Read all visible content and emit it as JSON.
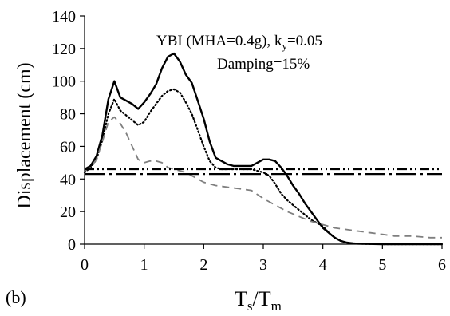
{
  "chart_data": {
    "type": "line",
    "panel_label": "(b)",
    "annotation": {
      "line1_prefix": "YBI  (MHA=0.4g), k",
      "line1_sub": "y",
      "line1_suffix": "=0.05",
      "line2": "Damping=15%"
    },
    "ylabel": "Displacement (cm)",
    "xlabel": {
      "main": "T",
      "sub1": "s",
      "mid": "/T",
      "sub2": "m"
    },
    "xlim": [
      0,
      6
    ],
    "ylim": [
      0,
      140
    ],
    "xticks": [
      "0",
      "1",
      "2",
      "3",
      "4",
      "5",
      "6"
    ],
    "yticks": [
      "0",
      "20",
      "40",
      "60",
      "80",
      "100",
      "120",
      "140"
    ],
    "grid": false,
    "legend": "none",
    "series": [
      {
        "style": "solid",
        "color": "#000000",
        "points": [
          [
            0,
            46
          ],
          [
            0.1,
            48
          ],
          [
            0.2,
            54
          ],
          [
            0.3,
            67
          ],
          [
            0.4,
            89
          ],
          [
            0.5,
            100
          ],
          [
            0.6,
            90
          ],
          [
            0.7,
            88
          ],
          [
            0.8,
            86
          ],
          [
            0.9,
            83
          ],
          [
            1.0,
            87
          ],
          [
            1.1,
            92
          ],
          [
            1.2,
            98
          ],
          [
            1.3,
            108
          ],
          [
            1.4,
            115
          ],
          [
            1.5,
            117
          ],
          [
            1.6,
            112
          ],
          [
            1.7,
            104
          ],
          [
            1.8,
            99
          ],
          [
            1.9,
            88
          ],
          [
            2.0,
            77
          ],
          [
            2.1,
            63
          ],
          [
            2.2,
            53
          ],
          [
            2.3,
            51
          ],
          [
            2.4,
            49
          ],
          [
            2.5,
            48
          ],
          [
            2.6,
            48
          ],
          [
            2.7,
            48
          ],
          [
            2.8,
            48
          ],
          [
            2.9,
            50
          ],
          [
            3.0,
            52
          ],
          [
            3.1,
            52
          ],
          [
            3.2,
            51
          ],
          [
            3.3,
            47
          ],
          [
            3.4,
            42
          ],
          [
            3.5,
            36
          ],
          [
            3.6,
            31
          ],
          [
            3.7,
            25
          ],
          [
            3.8,
            20
          ],
          [
            3.9,
            15
          ],
          [
            4.0,
            10
          ],
          [
            4.1,
            7
          ],
          [
            4.2,
            4
          ],
          [
            4.3,
            2
          ],
          [
            4.4,
            1
          ],
          [
            4.5,
            0.5
          ],
          [
            4.6,
            0.3
          ],
          [
            4.7,
            0.2
          ],
          [
            5.0,
            0
          ],
          [
            5.5,
            0
          ],
          [
            6.0,
            0
          ]
        ]
      },
      {
        "style": "dotted",
        "color": "#000000",
        "points": [
          [
            0,
            44
          ],
          [
            0.1,
            47
          ],
          [
            0.2,
            52
          ],
          [
            0.3,
            64
          ],
          [
            0.4,
            80
          ],
          [
            0.5,
            89
          ],
          [
            0.6,
            82
          ],
          [
            0.7,
            79
          ],
          [
            0.8,
            76
          ],
          [
            0.9,
            73
          ],
          [
            1.0,
            75
          ],
          [
            1.1,
            81
          ],
          [
            1.2,
            86
          ],
          [
            1.3,
            91
          ],
          [
            1.4,
            94
          ],
          [
            1.5,
            95
          ],
          [
            1.6,
            93
          ],
          [
            1.7,
            87
          ],
          [
            1.8,
            80
          ],
          [
            1.9,
            70
          ],
          [
            2.0,
            60
          ],
          [
            2.1,
            51
          ],
          [
            2.2,
            47
          ],
          [
            2.3,
            46
          ],
          [
            2.4,
            46
          ],
          [
            2.5,
            46
          ],
          [
            2.6,
            46
          ],
          [
            2.7,
            46
          ],
          [
            2.8,
            46
          ],
          [
            2.9,
            45
          ],
          [
            3.0,
            44
          ],
          [
            3.1,
            42
          ],
          [
            3.2,
            37
          ],
          [
            3.3,
            31
          ],
          [
            3.4,
            27
          ],
          [
            3.5,
            24
          ],
          [
            3.6,
            21
          ],
          [
            3.7,
            18
          ],
          [
            3.8,
            15
          ],
          [
            3.9,
            13
          ],
          [
            4.0,
            11
          ],
          [
            4.1,
            7
          ],
          [
            4.2,
            4
          ],
          [
            4.3,
            2
          ],
          [
            4.4,
            1
          ],
          [
            4.5,
            0.5
          ],
          [
            4.7,
            0.2
          ],
          [
            5.0,
            0
          ],
          [
            5.5,
            0
          ],
          [
            6.0,
            0
          ]
        ]
      },
      {
        "style": "dashed",
        "color": "#7f7f7f",
        "points": [
          [
            0,
            45
          ],
          [
            0.1,
            47
          ],
          [
            0.2,
            52
          ],
          [
            0.3,
            63
          ],
          [
            0.4,
            75
          ],
          [
            0.5,
            78
          ],
          [
            0.6,
            74
          ],
          [
            0.7,
            68
          ],
          [
            0.8,
            60
          ],
          [
            0.9,
            52
          ],
          [
            1.0,
            50
          ],
          [
            1.1,
            51
          ],
          [
            1.2,
            51
          ],
          [
            1.3,
            50
          ],
          [
            1.4,
            47
          ],
          [
            1.5,
            46
          ],
          [
            1.6,
            45
          ],
          [
            1.7,
            44
          ],
          [
            1.8,
            42
          ],
          [
            1.9,
            40
          ],
          [
            2.0,
            38
          ],
          [
            2.2,
            36
          ],
          [
            2.4,
            35
          ],
          [
            2.6,
            34
          ],
          [
            2.8,
            33
          ],
          [
            3.0,
            28
          ],
          [
            3.2,
            24
          ],
          [
            3.4,
            20
          ],
          [
            3.6,
            17
          ],
          [
            3.8,
            14
          ],
          [
            4.0,
            12
          ],
          [
            4.2,
            10
          ],
          [
            4.4,
            9
          ],
          [
            4.6,
            8
          ],
          [
            4.8,
            7
          ],
          [
            5.0,
            6
          ],
          [
            5.2,
            5
          ],
          [
            5.5,
            5
          ],
          [
            5.8,
            4
          ],
          [
            6.0,
            4
          ]
        ]
      }
    ],
    "reference_lines": [
      {
        "style": "dash-dot-dot",
        "y": 46,
        "color": "#000000"
      },
      {
        "style": "long-dash-dot",
        "y": 43,
        "color": "#000000"
      }
    ]
  }
}
